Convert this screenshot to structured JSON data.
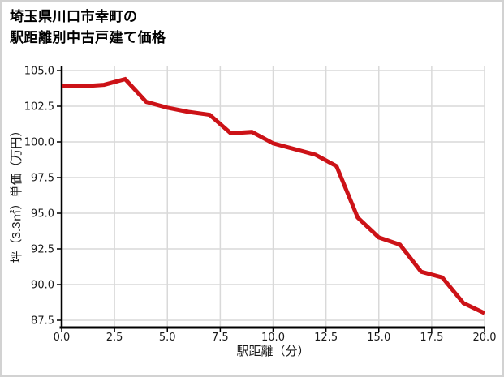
{
  "figure": {
    "title_line1": "埼玉県川口市幸町の",
    "title_line2": "駅距離別中古戸建て価格"
  },
  "chart_data": {
    "type": "line",
    "title": "埼玉県川口市幸町の駅距離別中古戸建て価格",
    "xlabel": "駅距離（分）",
    "ylabel": "坪（3.3㎡）単価（万円）",
    "x": [
      0,
      1,
      2,
      3,
      4,
      5,
      6,
      7,
      8,
      9,
      10,
      11,
      12,
      13,
      14,
      15,
      16,
      17,
      18,
      19,
      20
    ],
    "values": [
      103.9,
      103.9,
      104.0,
      104.4,
      102.8,
      102.4,
      102.1,
      101.9,
      100.6,
      100.7,
      99.9,
      99.5,
      99.1,
      98.3,
      94.7,
      93.3,
      92.8,
      90.9,
      90.5,
      88.7,
      88.0
    ],
    "x_ticks": [
      0,
      2.5,
      5,
      7.5,
      10,
      12.5,
      15,
      17.5,
      20
    ],
    "y_ticks": [
      87.5,
      90,
      92.5,
      95,
      97.5,
      100,
      102.5,
      105
    ],
    "xlim": [
      0,
      20
    ],
    "ylim": [
      87.0,
      105.3
    ],
    "grid": true,
    "legend_position": "none",
    "line_color": "#cc1217",
    "grid_color": "#d9d9d9",
    "axis_color": "#000000",
    "text_color": "#1a1a1a"
  }
}
